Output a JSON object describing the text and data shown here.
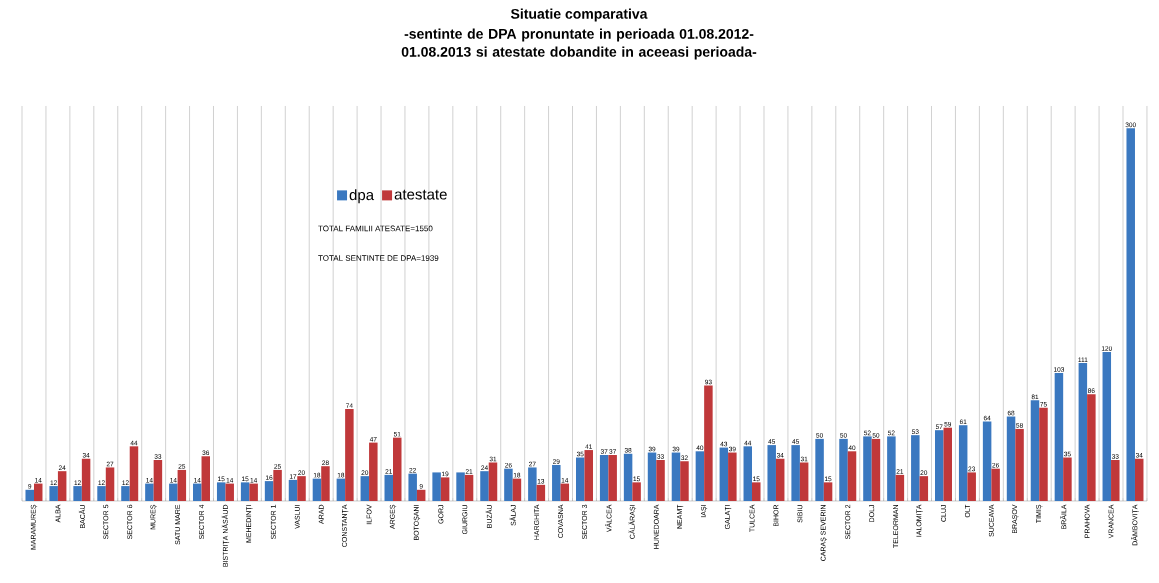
{
  "chart_data": {
    "type": "bar",
    "title": "Situatie comparativa",
    "subtitle": "-sentinte de DPA pronuntate in perioada 01.08.2012-01.08.2013 si atestate dobandite in aceeasi perioada-",
    "categories": [
      "MARAMUREȘ",
      "ALBA",
      "BACĂU",
      "SECTOR 5",
      "SECTOR 6",
      "MUREȘ",
      "SATU MARE",
      "SECTOR 4",
      "BISTRIȚA NĂSĂUD",
      "MEHEDINȚI",
      "SECTOR 1",
      "VASLUI",
      "ARAD",
      "CONSTANȚA",
      "ILFOV",
      "ARGEȘ",
      "BOTOȘANI",
      "GORJ",
      "GIURGIU",
      "BUZĂU",
      "SĂLAJ",
      "HARGHITA",
      "COVASNA",
      "SECTOR 3",
      "VÂLCEA",
      "CĂLĂRAȘI",
      "HUNEDOARA",
      "NEAMȚ",
      "IAȘI",
      "GALAȚI",
      "TULCEA",
      "BIHOR",
      "SIBIU",
      "CARAȘ SEVERIN",
      "SECTOR 2",
      "DOLJ",
      "TELEORMAN",
      "IALOMIȚA",
      "CLUJ",
      "OLT",
      "SUCEAVA",
      "BRAȘOV",
      "TIMIȘ",
      "BRĂILA",
      "PRAHOVA",
      "VRANCEA",
      "DÂMBOVIȚA"
    ],
    "series": [
      {
        "name": "dpa",
        "color": "#3a78c0",
        "values": [
          9,
          12,
          12,
          12,
          12,
          14,
          14,
          14,
          15,
          15,
          16,
          17,
          18,
          18,
          20,
          21,
          22,
          23,
          23,
          24,
          26,
          27,
          29,
          35,
          37,
          38,
          39,
          39,
          40,
          43,
          44,
          45,
          45,
          50,
          50,
          52,
          52,
          53,
          57,
          61,
          64,
          68,
          81,
          103,
          111,
          120,
          300
        ],
        "value_labels": [
          "9",
          "12",
          "12",
          "12",
          "12",
          "14",
          "14",
          "14",
          "15",
          "15",
          "16",
          "17",
          "18",
          "18",
          "20",
          "21",
          "22",
          null,
          null,
          "24",
          "26",
          "27",
          "29",
          "35",
          "37",
          "38",
          "39",
          "39",
          "40",
          "43",
          "44",
          "45",
          "45",
          "50",
          "50",
          "52",
          "52",
          "53",
          "57",
          "61",
          "64",
          "68",
          "81",
          "103",
          "111",
          "120",
          "300"
        ]
      },
      {
        "name": "atestate",
        "color": "#c0383a",
        "values": [
          14,
          24,
          34,
          27,
          44,
          33,
          25,
          36,
          14,
          14,
          25,
          20,
          28,
          74,
          47,
          51,
          9,
          19,
          21,
          31,
          18,
          13,
          14,
          41,
          37,
          15,
          33,
          32,
          93,
          39,
          15,
          34,
          31,
          15,
          40,
          50,
          21,
          20,
          59,
          23,
          26,
          58,
          75,
          35,
          86,
          33,
          34
        ],
        "value_labels": [
          "14",
          "24",
          "34",
          "27",
          "44",
          "33",
          "25",
          "36",
          "14",
          "14",
          "25",
          "20",
          "28",
          "74",
          "47",
          "51",
          "9",
          "19",
          "21",
          "31",
          "18",
          "13",
          "14",
          "41",
          "37",
          "15",
          "33",
          "32",
          "93",
          "39",
          "15",
          "34",
          "31",
          "15",
          "40",
          "50",
          "21",
          "20",
          "59",
          "23",
          "26",
          "58",
          "75",
          "35",
          "86",
          "33",
          "34"
        ]
      }
    ],
    "annotations": [
      "TOTAL FAMILII ATESATE=1550",
      "TOTAL SENTINTE DE DPA=1939"
    ],
    "legend": "top",
    "grid": "x"
  }
}
